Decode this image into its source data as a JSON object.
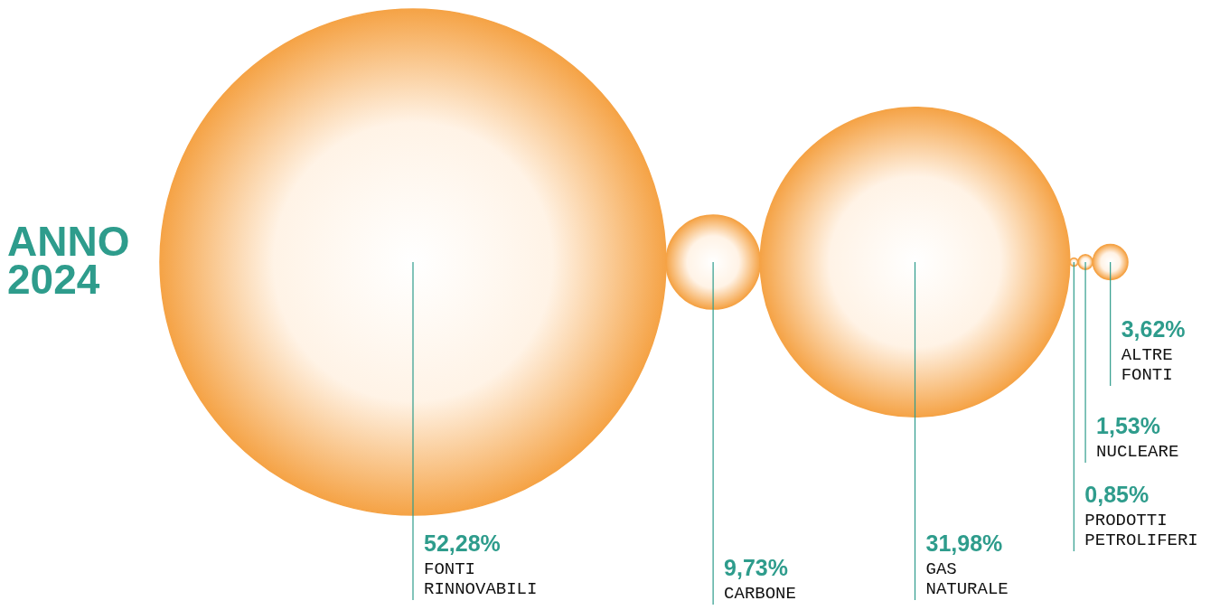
{
  "chart_data": {
    "type": "other",
    "title": "ANNO 2024",
    "categories": [
      "FONTI RINNOVABILI",
      "CARBONE",
      "GAS NATURALE",
      "PRODOTTI PETROLIFERI",
      "NUCLEARE",
      "ALTRE FONTI"
    ],
    "values": [
      52.28,
      9.73,
      31.98,
      0.85,
      1.53,
      3.62
    ],
    "value_labels": [
      "52,28%",
      "9,73%",
      "31,98%",
      "0,85%",
      "1,53%",
      "3,62%"
    ],
    "color": "#f5a346"
  }
}
